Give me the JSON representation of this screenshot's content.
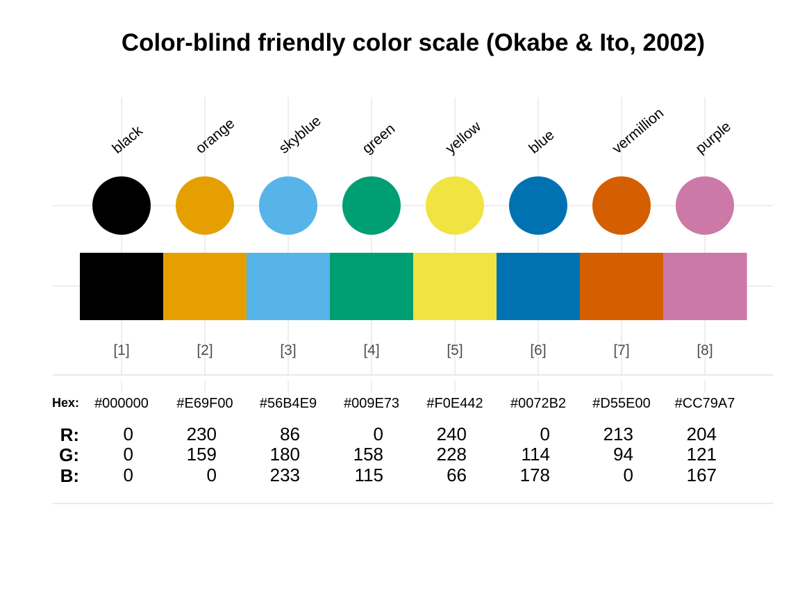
{
  "chart_data": {
    "type": "table",
    "title": "Color-blind friendly color scale (Okabe & Ito, 2002)",
    "colors": [
      {
        "index": "[1]",
        "name": "black",
        "hex": "#000000",
        "r": 0,
        "g": 0,
        "b": 0
      },
      {
        "index": "[2]",
        "name": "orange",
        "hex": "#E69F00",
        "r": 230,
        "g": 159,
        "b": 0
      },
      {
        "index": "[3]",
        "name": "skyblue",
        "hex": "#56B4E9",
        "r": 86,
        "g": 180,
        "b": 233
      },
      {
        "index": "[4]",
        "name": "green",
        "hex": "#009E73",
        "r": 0,
        "g": 158,
        "b": 115
      },
      {
        "index": "[5]",
        "name": "yellow",
        "hex": "#F0E442",
        "r": 240,
        "g": 228,
        "b": 66
      },
      {
        "index": "[6]",
        "name": "blue",
        "hex": "#0072B2",
        "r": 0,
        "g": 114,
        "b": 178
      },
      {
        "index": "[7]",
        "name": "vermillion",
        "hex": "#D55E00",
        "r": 213,
        "g": 94,
        "b": 0
      },
      {
        "index": "[8]",
        "name": "purple",
        "hex": "#CC79A7",
        "r": 204,
        "g": 121,
        "b": 167
      }
    ],
    "row_labels": {
      "hex": "Hex:",
      "r": "R:",
      "g": "G:",
      "b": "B:"
    },
    "grid": true
  }
}
